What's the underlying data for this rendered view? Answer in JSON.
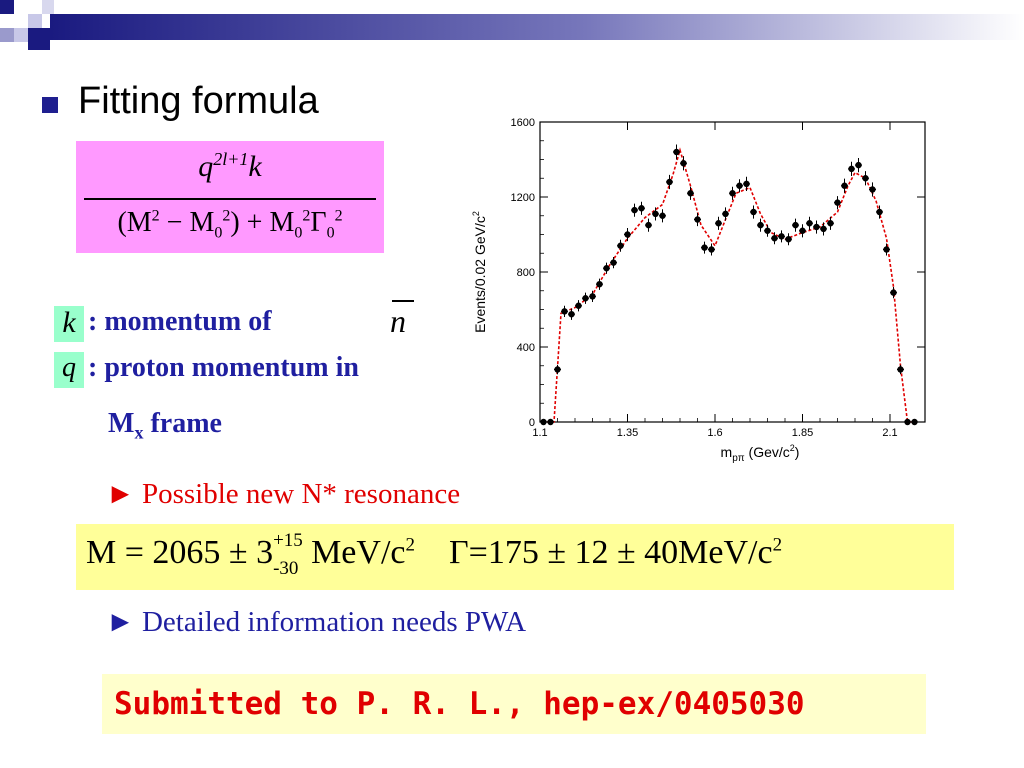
{
  "slide": {
    "title": "Fitting formula",
    "formula": {
      "numerator": "q",
      "numerator_sup": "2l+1",
      "numerator_end": "k",
      "denominator": {
        "open": "(M",
        "sup1": "2",
        "minus": " − M",
        "sub1": "0",
        "sup2": "2",
        "close_plus": ") + M",
        "sub2": "0",
        "sup3": "2",
        "gamma": "Γ",
        "sub3": "0",
        "sup4": "2"
      }
    },
    "definitions": {
      "k_symbol": "k",
      "k_text": ": momentum of",
      "k_target": "n",
      "q_symbol": "q",
      "q_text": ": proton momentum in",
      "frame_prefix": "M",
      "frame_sub": "x",
      "frame_suffix": "frame"
    },
    "notes": {
      "possible": "► Possible new N* resonance",
      "detailed": "► Detailed information needs PWA"
    },
    "mass_result": {
      "m_prefix": "M = 2065 ± 3",
      "m_up": "+15",
      "m_dn": "-30",
      "m_unit": "MeV/c",
      "m_unit_sup": "2",
      "gamma_text": "Γ=175 ± 12 ± 40MeV/c",
      "gamma_sup": "2"
    },
    "submitted": "Submitted to P. R. L.,  hep-ex/0405030",
    "colors": {
      "formula_bg": "#ff99ff",
      "symbol_bg": "#99ffcc",
      "mass_bg": "#ffff99",
      "submit_bg": "#ffffcc",
      "blue_text": "#1f1fa0",
      "red_text": "#e00000"
    }
  },
  "chart_data": {
    "type": "scatter",
    "title": "",
    "xlabel": "m",
    "xlabel_sub": "pπ",
    "xlabel_unit": "(Gev/c",
    "xlabel_unit_sup": "2",
    "xlabel_unit_end": ")",
    "ylabel": "Events/0.02 GeV/c",
    "ylabel_sup": "2",
    "xlim": [
      1.1,
      2.2
    ],
    "ylim": [
      0,
      1600
    ],
    "x_ticks": [
      "1.1",
      "1.35",
      "1.6",
      "1.85",
      "2.1"
    ],
    "x_tick_values": [
      1.1,
      1.35,
      1.6,
      1.85,
      2.1
    ],
    "y_ticks": [
      "0",
      "400",
      "800",
      "1200",
      "1600"
    ],
    "y_tick_values": [
      0,
      400,
      800,
      1200,
      1600
    ],
    "series": [
      {
        "kind": "data-with-errors",
        "x": [
          1.11,
          1.13,
          1.15,
          1.17,
          1.19,
          1.21,
          1.23,
          1.25,
          1.27,
          1.29,
          1.31,
          1.33,
          1.35,
          1.37,
          1.39,
          1.41,
          1.43,
          1.45,
          1.47,
          1.49,
          1.51,
          1.53,
          1.55,
          1.57,
          1.59,
          1.61,
          1.63,
          1.65,
          1.67,
          1.69,
          1.71,
          1.73,
          1.75,
          1.77,
          1.79,
          1.81,
          1.83,
          1.85,
          1.87,
          1.89,
          1.91,
          1.93,
          1.95,
          1.97,
          1.99,
          2.01,
          2.03,
          2.05,
          2.07,
          2.09,
          2.11,
          2.13,
          2.15,
          2.17
        ],
        "y": [
          0,
          0,
          280,
          590,
          575,
          620,
          660,
          670,
          735,
          820,
          850,
          940,
          1000,
          1130,
          1140,
          1050,
          1110,
          1100,
          1280,
          1440,
          1380,
          1220,
          1080,
          930,
          920,
          1060,
          1110,
          1220,
          1260,
          1270,
          1120,
          1050,
          1020,
          980,
          990,
          975,
          1050,
          1020,
          1060,
          1040,
          1030,
          1060,
          1170,
          1260,
          1350,
          1370,
          1300,
          1240,
          1120,
          920,
          690,
          280,
          0,
          0
        ],
        "err": [
          0,
          0,
          25,
          30,
          30,
          30,
          30,
          30,
          30,
          30,
          30,
          32,
          35,
          35,
          35,
          35,
          35,
          35,
          38,
          40,
          38,
          35,
          35,
          32,
          32,
          35,
          35,
          35,
          35,
          38,
          35,
          35,
          32,
          32,
          32,
          32,
          35,
          35,
          35,
          35,
          35,
          35,
          35,
          38,
          38,
          38,
          38,
          38,
          35,
          32,
          30,
          25,
          0,
          0
        ]
      },
      {
        "kind": "fit-curve",
        "color": "#e00000",
        "x": [
          1.12,
          1.14,
          1.15,
          1.16,
          1.2,
          1.25,
          1.3,
          1.35,
          1.4,
          1.45,
          1.48,
          1.5,
          1.53,
          1.56,
          1.6,
          1.63,
          1.66,
          1.7,
          1.73,
          1.76,
          1.8,
          1.85,
          1.9,
          1.95,
          1.98,
          2.0,
          2.03,
          2.06,
          2.09,
          2.11,
          2.13,
          2.15,
          2.17
        ],
        "y": [
          0,
          0,
          290,
          580,
          610,
          680,
          840,
          980,
          1090,
          1160,
          1320,
          1450,
          1260,
          1050,
          940,
          1080,
          1220,
          1250,
          1110,
          1010,
          975,
          1010,
          1040,
          1120,
          1260,
          1330,
          1300,
          1180,
          980,
          720,
          300,
          0,
          0
        ]
      }
    ],
    "grid": false,
    "legend": "none"
  }
}
